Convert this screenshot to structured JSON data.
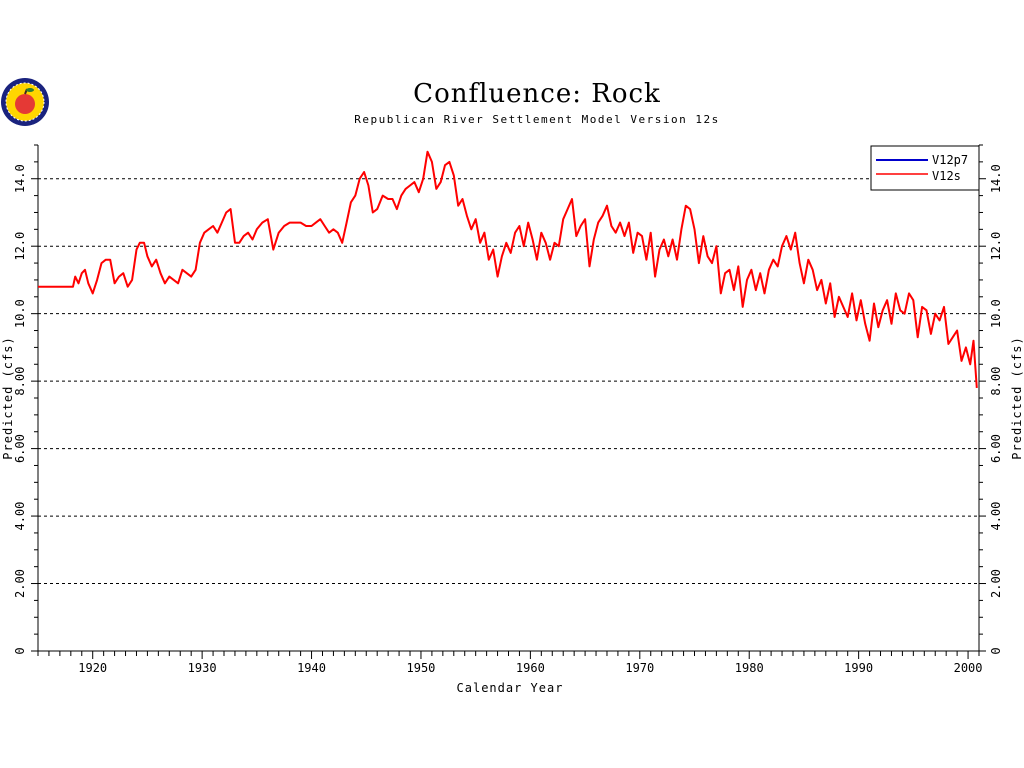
{
  "colors": {
    "background": "#ffffff",
    "axis": "#000000",
    "grid": "#000000",
    "series_v12p7": "#0000cc",
    "series_v12s": "#ff0000",
    "logo_ring": "#1a237e",
    "logo_fill": "#ffd600",
    "logo_apple": "#e53935"
  },
  "logo": {
    "icon": "apple-logo-icon"
  },
  "chart_data": {
    "type": "line",
    "title": "Confluence:  Rock",
    "subtitle": "Republican  River  Settlement  Model  Version  12s",
    "xlabel": "Calendar  Year",
    "ylabel": "Predicted  (cfs)",
    "ylabel_right": "Predicted  (cfs)",
    "xlim": [
      1915,
      2001
    ],
    "ylim": [
      0,
      15
    ],
    "xticks": [
      1920,
      1930,
      1940,
      1950,
      1960,
      1970,
      1980,
      1990,
      2000
    ],
    "xtick_labels": [
      "1920",
      "1930",
      "1940",
      "1950",
      "1960",
      "1970",
      "1980",
      "1990",
      "2000"
    ],
    "yticks": [
      0,
      2,
      4,
      6,
      8,
      10,
      12,
      14
    ],
    "ytick_labels": [
      "0",
      "2.00",
      "4.00",
      "6.00",
      "8.00",
      "10.0",
      "12.0",
      "14.0"
    ],
    "grid": "horizontal dashed at major y ticks",
    "legend": "top-right",
    "series": [
      {
        "name": "V12p7",
        "color": "#0000cc",
        "x": [],
        "y": []
      },
      {
        "name": "V12s",
        "color": "#ff0000",
        "x": [
          1915.0,
          1918.2,
          1918.4,
          1918.7,
          1919.0,
          1919.3,
          1919.6,
          1920.0,
          1920.4,
          1920.8,
          1921.2,
          1921.6,
          1922.0,
          1922.4,
          1922.8,
          1923.2,
          1923.6,
          1924.0,
          1924.3,
          1924.7,
          1925.0,
          1925.4,
          1925.8,
          1926.2,
          1926.6,
          1927.0,
          1927.4,
          1927.8,
          1928.2,
          1928.6,
          1929.0,
          1929.4,
          1929.8,
          1930.2,
          1930.6,
          1931.0,
          1931.4,
          1931.8,
          1932.2,
          1932.6,
          1933.0,
          1933.4,
          1933.8,
          1934.2,
          1934.6,
          1935.0,
          1935.5,
          1936.0,
          1936.5,
          1937.0,
          1937.5,
          1938.0,
          1938.5,
          1939.0,
          1939.5,
          1940.0,
          1940.4,
          1940.8,
          1941.2,
          1941.6,
          1942.0,
          1942.4,
          1942.8,
          1943.2,
          1943.6,
          1944.0,
          1944.4,
          1944.8,
          1945.2,
          1945.6,
          1946.0,
          1946.5,
          1947.0,
          1947.4,
          1947.8,
          1948.2,
          1948.6,
          1949.0,
          1949.4,
          1949.8,
          1950.2,
          1950.6,
          1951.0,
          1951.4,
          1951.8,
          1952.2,
          1952.6,
          1953.0,
          1953.4,
          1953.8,
          1954.2,
          1954.6,
          1955.0,
          1955.4,
          1955.8,
          1956.2,
          1956.6,
          1957.0,
          1957.4,
          1957.8,
          1958.2,
          1958.6,
          1959.0,
          1959.4,
          1959.8,
          1960.2,
          1960.6,
          1961.0,
          1961.4,
          1961.8,
          1962.2,
          1962.6,
          1963.0,
          1963.4,
          1963.8,
          1964.2,
          1964.6,
          1965.0,
          1965.4,
          1965.8,
          1966.2,
          1966.6,
          1967.0,
          1967.4,
          1967.8,
          1968.2,
          1968.6,
          1969.0,
          1969.4,
          1969.8,
          1970.2,
          1970.6,
          1971.0,
          1971.4,
          1971.8,
          1972.2,
          1972.6,
          1973.0,
          1973.4,
          1973.8,
          1974.2,
          1974.6,
          1975.0,
          1975.4,
          1975.8,
          1976.2,
          1976.6,
          1977.0,
          1977.4,
          1977.8,
          1978.2,
          1978.6,
          1979.0,
          1979.4,
          1979.8,
          1980.2,
          1980.6,
          1981.0,
          1981.4,
          1981.8,
          1982.2,
          1982.6,
          1983.0,
          1983.4,
          1983.8,
          1984.2,
          1984.6,
          1985.0,
          1985.4,
          1985.8,
          1986.2,
          1986.6,
          1987.0,
          1987.4,
          1987.8,
          1988.2,
          1988.6,
          1989.0,
          1989.4,
          1989.8,
          1990.2,
          1990.6,
          1991.0,
          1991.4,
          1991.8,
          1992.2,
          1992.6,
          1993.0,
          1993.4,
          1993.8,
          1994.2,
          1994.6,
          1995.0,
          1995.4,
          1995.8,
          1996.2,
          1996.6,
          1997.0,
          1997.4,
          1997.8,
          1998.2,
          1998.6,
          1999.0,
          1999.4,
          1999.8,
          2000.2,
          2000.5,
          2000.8
        ],
        "y": [
          10.8,
          10.8,
          11.1,
          10.9,
          11.2,
          11.3,
          10.9,
          10.6,
          11.0,
          11.5,
          11.6,
          11.6,
          10.9,
          11.1,
          11.2,
          10.8,
          11.0,
          11.9,
          12.1,
          12.1,
          11.7,
          11.4,
          11.6,
          11.2,
          10.9,
          11.1,
          11.0,
          10.9,
          11.3,
          11.2,
          11.1,
          11.3,
          12.1,
          12.4,
          12.5,
          12.6,
          12.4,
          12.7,
          13.0,
          13.1,
          12.1,
          12.1,
          12.3,
          12.4,
          12.2,
          12.5,
          12.7,
          12.8,
          11.9,
          12.4,
          12.6,
          12.7,
          12.7,
          12.7,
          12.6,
          12.6,
          12.7,
          12.8,
          12.6,
          12.4,
          12.5,
          12.4,
          12.1,
          12.7,
          13.3,
          13.5,
          14.0,
          14.2,
          13.8,
          13.0,
          13.1,
          13.5,
          13.4,
          13.4,
          13.1,
          13.5,
          13.7,
          13.8,
          13.9,
          13.6,
          14.0,
          14.8,
          14.5,
          13.7,
          13.9,
          14.4,
          14.5,
          14.1,
          13.2,
          13.4,
          12.9,
          12.5,
          12.8,
          12.1,
          12.4,
          11.6,
          11.9,
          11.1,
          11.7,
          12.1,
          11.8,
          12.4,
          12.6,
          12.0,
          12.7,
          12.2,
          11.6,
          12.4,
          12.1,
          11.6,
          12.1,
          12.0,
          12.8,
          13.1,
          13.4,
          12.3,
          12.6,
          12.8,
          11.4,
          12.2,
          12.7,
          12.9,
          13.2,
          12.6,
          12.4,
          12.7,
          12.3,
          12.7,
          11.8,
          12.4,
          12.3,
          11.6,
          12.4,
          11.1,
          11.9,
          12.2,
          11.7,
          12.2,
          11.6,
          12.5,
          13.2,
          13.1,
          12.5,
          11.5,
          12.3,
          11.7,
          11.5,
          12.0,
          10.6,
          11.2,
          11.3,
          10.7,
          11.4,
          10.2,
          11.0,
          11.3,
          10.7,
          11.2,
          10.6,
          11.3,
          11.6,
          11.4,
          12.0,
          12.3,
          11.9,
          12.4,
          11.5,
          10.9,
          11.6,
          11.3,
          10.7,
          11.0,
          10.3,
          10.9,
          9.9,
          10.5,
          10.2,
          9.9,
          10.6,
          9.8,
          10.4,
          9.7,
          9.2,
          10.3,
          9.6,
          10.1,
          10.4,
          9.7,
          10.6,
          10.1,
          10.0,
          10.6,
          10.4,
          9.3,
          10.2,
          10.1,
          9.4,
          10.0,
          9.8,
          10.2,
          9.1,
          9.3,
          9.5,
          8.6,
          9.0,
          8.5,
          9.2,
          7.8
        ]
      }
    ]
  }
}
